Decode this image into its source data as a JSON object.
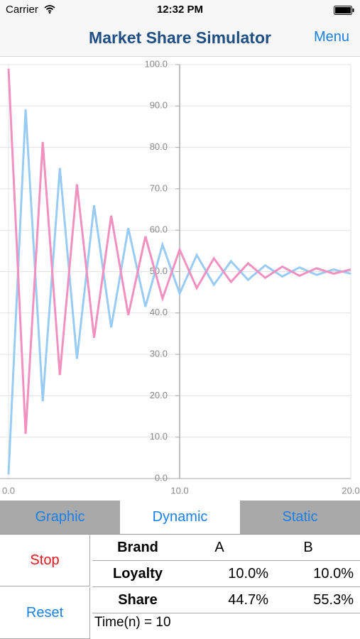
{
  "status_bar": {
    "carrier": "Carrier",
    "time": "12:32 PM"
  },
  "nav": {
    "title": "Market Share Simulator",
    "menu": "Menu"
  },
  "chart_data": {
    "type": "line",
    "x": [
      0,
      1,
      2,
      3,
      4,
      5,
      6,
      7,
      8,
      9,
      10,
      11,
      12,
      13,
      14,
      15,
      16,
      17,
      18,
      19,
      20
    ],
    "series": [
      {
        "color": "#99ccf5",
        "values": [
          1,
          89.2,
          18.7,
          75,
          28.9,
          66,
          36.5,
          60.5,
          41.5,
          56.5,
          44.7,
          54,
          46.8,
          52.5,
          48,
          51.5,
          48.8,
          51,
          49.2,
          50.5,
          49.5
        ]
      },
      {
        "color": "#f290c0",
        "values": [
          99,
          10.8,
          81.3,
          25,
          71.1,
          34,
          63.5,
          39.5,
          58.5,
          43.5,
          55.3,
          46,
          53.2,
          47.5,
          52,
          48.5,
          51.2,
          49,
          50.8,
          49.5,
          50.5
        ]
      }
    ],
    "xlim": [
      0,
      20
    ],
    "xticks": [
      {
        "value": 0,
        "label": "0.0"
      },
      {
        "value": 10,
        "label": "10.0"
      },
      {
        "value": 20,
        "label": "20.0"
      }
    ],
    "ylim": [
      0,
      100
    ],
    "yticks": [
      {
        "value": 0,
        "label": "0.0"
      },
      {
        "value": 10,
        "label": "10.0"
      },
      {
        "value": 20,
        "label": "20.0"
      },
      {
        "value": 30,
        "label": "30.0"
      },
      {
        "value": 40,
        "label": "40.0"
      },
      {
        "value": 50,
        "label": "50.0"
      },
      {
        "value": 60,
        "label": "60.0"
      },
      {
        "value": 70,
        "label": "70.0"
      },
      {
        "value": 80,
        "label": "80.0"
      },
      {
        "value": 90,
        "label": "90.0"
      },
      {
        "value": 100,
        "label": "100.0"
      }
    ],
    "yaxis_at": 10,
    "grid": true
  },
  "tabs": [
    "Graphic",
    "Dynamic",
    "Static"
  ],
  "buttons": {
    "stop": "Stop",
    "reset": "Reset"
  },
  "table": {
    "header": [
      "Brand",
      "A",
      "B"
    ],
    "rows": [
      [
        "Loyalty",
        "10.0%",
        "10.0%"
      ],
      [
        "Share",
        "44.7%",
        "55.3%"
      ]
    ]
  },
  "time_label": "Time(n) = 10"
}
